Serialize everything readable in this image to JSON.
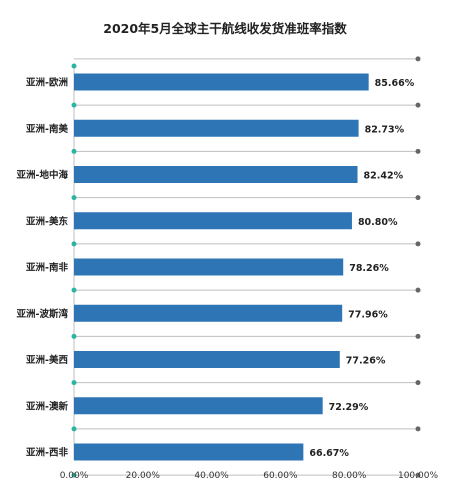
{
  "chart_data": {
    "type": "bar",
    "orientation": "horizontal",
    "title": "2020年5月全球主干航线收发货准班率指数",
    "categories": [
      "亚洲-欧洲",
      "亚洲-南美",
      "亚洲-地中海",
      "亚洲-美东",
      "亚洲-南非",
      "亚洲-波斯湾",
      "亚洲-美西",
      "亚洲-澳新",
      "亚洲-西非"
    ],
    "values": [
      85.66,
      82.73,
      82.42,
      80.8,
      78.26,
      77.96,
      77.26,
      72.29,
      66.67
    ],
    "value_labels": [
      "85.66%",
      "82.73%",
      "82.42%",
      "80.80%",
      "78.26%",
      "77.96%",
      "77.26%",
      "72.29%",
      "66.67%"
    ],
    "xlim": [
      0,
      100
    ],
    "x_ticks": [
      "0.00%",
      "20.00%",
      "40.00%",
      "60.00%",
      "80.00%",
      "100.00%"
    ],
    "xlabel": "",
    "ylabel": "",
    "grid": true,
    "legend": "none",
    "colors": {
      "bar": "#2e75b6",
      "axis_dot": "#2bb5a0",
      "end_dot": "#666666",
      "line": "#bfbfbf"
    }
  }
}
